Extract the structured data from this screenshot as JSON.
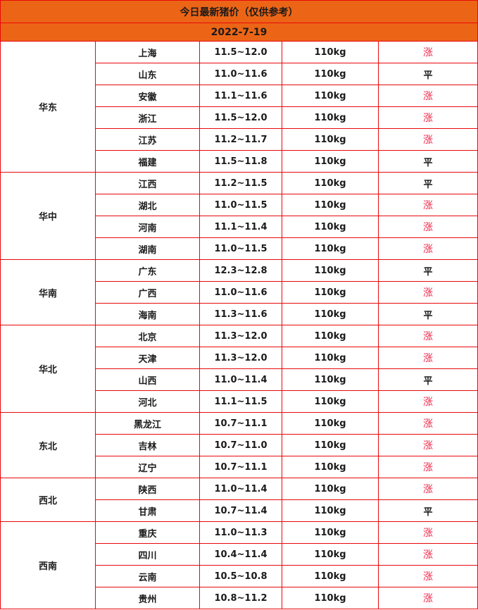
{
  "title": "今日最新猪价（仅供参考）",
  "date": "2022-7-19",
  "colors": {
    "header_bg": "#ec6516",
    "border": "#e8080c",
    "up": "#f0284a"
  },
  "regions": [
    {
      "name": "华东",
      "rows": [
        {
          "province": "上海",
          "price": "11.5~12.0",
          "weight": "110kg",
          "trend": "涨"
        },
        {
          "province": "山东",
          "price": "11.0~11.6",
          "weight": "110kg",
          "trend": "平"
        },
        {
          "province": "安徽",
          "price": "11.1~11.6",
          "weight": "110kg",
          "trend": "涨"
        },
        {
          "province": "浙江",
          "price": "11.5~12.0",
          "weight": "110kg",
          "trend": "涨"
        },
        {
          "province": "江苏",
          "price": "11.2~11.7",
          "weight": "110kg",
          "trend": "涨"
        },
        {
          "province": "福建",
          "price": "11.5~11.8",
          "weight": "110kg",
          "trend": "平"
        }
      ]
    },
    {
      "name": "华中",
      "rows": [
        {
          "province": "江西",
          "price": "11.2~11.5",
          "weight": "110kg",
          "trend": "平"
        },
        {
          "province": "湖北",
          "price": "11.0~11.5",
          "weight": "110kg",
          "trend": "涨"
        },
        {
          "province": "河南",
          "price": "11.1~11.4",
          "weight": "110kg",
          "trend": "涨"
        },
        {
          "province": "湖南",
          "price": "11.0~11.5",
          "weight": "110kg",
          "trend": "涨"
        }
      ]
    },
    {
      "name": "华南",
      "rows": [
        {
          "province": "广东",
          "price": "12.3~12.8",
          "weight": "110kg",
          "trend": "平"
        },
        {
          "province": "广西",
          "price": "11.0~11.6",
          "weight": "110kg",
          "trend": "涨"
        },
        {
          "province": "海南",
          "price": "11.3~11.6",
          "weight": "110kg",
          "trend": "平"
        }
      ]
    },
    {
      "name": "华北",
      "rows": [
        {
          "province": "北京",
          "price": "11.3~12.0",
          "weight": "110kg",
          "trend": "涨"
        },
        {
          "province": "天津",
          "price": "11.3~12.0",
          "weight": "110kg",
          "trend": "涨"
        },
        {
          "province": "山西",
          "price": "11.0~11.4",
          "weight": "110kg",
          "trend": "平"
        },
        {
          "province": "河北",
          "price": "11.1~11.5",
          "weight": "110kg",
          "trend": "涨"
        }
      ]
    },
    {
      "name": "东北",
      "rows": [
        {
          "province": "黑龙江",
          "price": "10.7~11.1",
          "weight": "110kg",
          "trend": "涨"
        },
        {
          "province": "吉林",
          "price": "10.7~11.0",
          "weight": "110kg",
          "trend": "涨"
        },
        {
          "province": "辽宁",
          "price": "10.7~11.1",
          "weight": "110kg",
          "trend": "涨"
        }
      ]
    },
    {
      "name": "西北",
      "rows": [
        {
          "province": "陕西",
          "price": "11.0~11.4",
          "weight": "110kg",
          "trend": "涨"
        },
        {
          "province": "甘肃",
          "price": "10.7~11.4",
          "weight": "110kg",
          "trend": "平"
        }
      ]
    },
    {
      "name": "西南",
      "rows": [
        {
          "province": "重庆",
          "price": "11.0~11.3",
          "weight": "110kg",
          "trend": "涨"
        },
        {
          "province": "四川",
          "price": "10.4~11.4",
          "weight": "110kg",
          "trend": "涨"
        },
        {
          "province": "云南",
          "price": "10.5~10.8",
          "weight": "110kg",
          "trend": "涨"
        },
        {
          "province": "贵州",
          "price": "10.8~11.2",
          "weight": "110kg",
          "trend": "涨"
        }
      ]
    }
  ]
}
